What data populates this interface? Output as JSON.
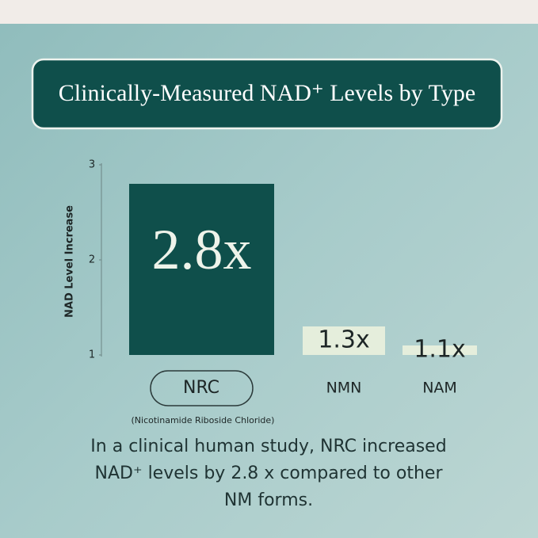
{
  "chart_data": {
    "type": "bar",
    "title": "Clinically-Measured NAD⁺ Levels by Type",
    "y_label": "NAD Level Increase",
    "categories": [
      "NRC",
      "NMN",
      "NAM"
    ],
    "values": [
      2.8,
      1.3,
      1.1
    ],
    "value_labels": [
      "2.8x",
      "1.3x",
      "1.1x"
    ],
    "colors": [
      "#0f4f4b",
      "#e5eedc",
      "#e5eedc"
    ],
    "ylim": [
      1,
      3
    ],
    "yticks": [
      1,
      2,
      3
    ],
    "annotation": "(Nicotinamide Riboside Chloride)",
    "caption": [
      "In a clinical human study, NRC increased",
      "NAD⁺ levels by 2.8 x compared to other",
      "NM forms."
    ]
  }
}
